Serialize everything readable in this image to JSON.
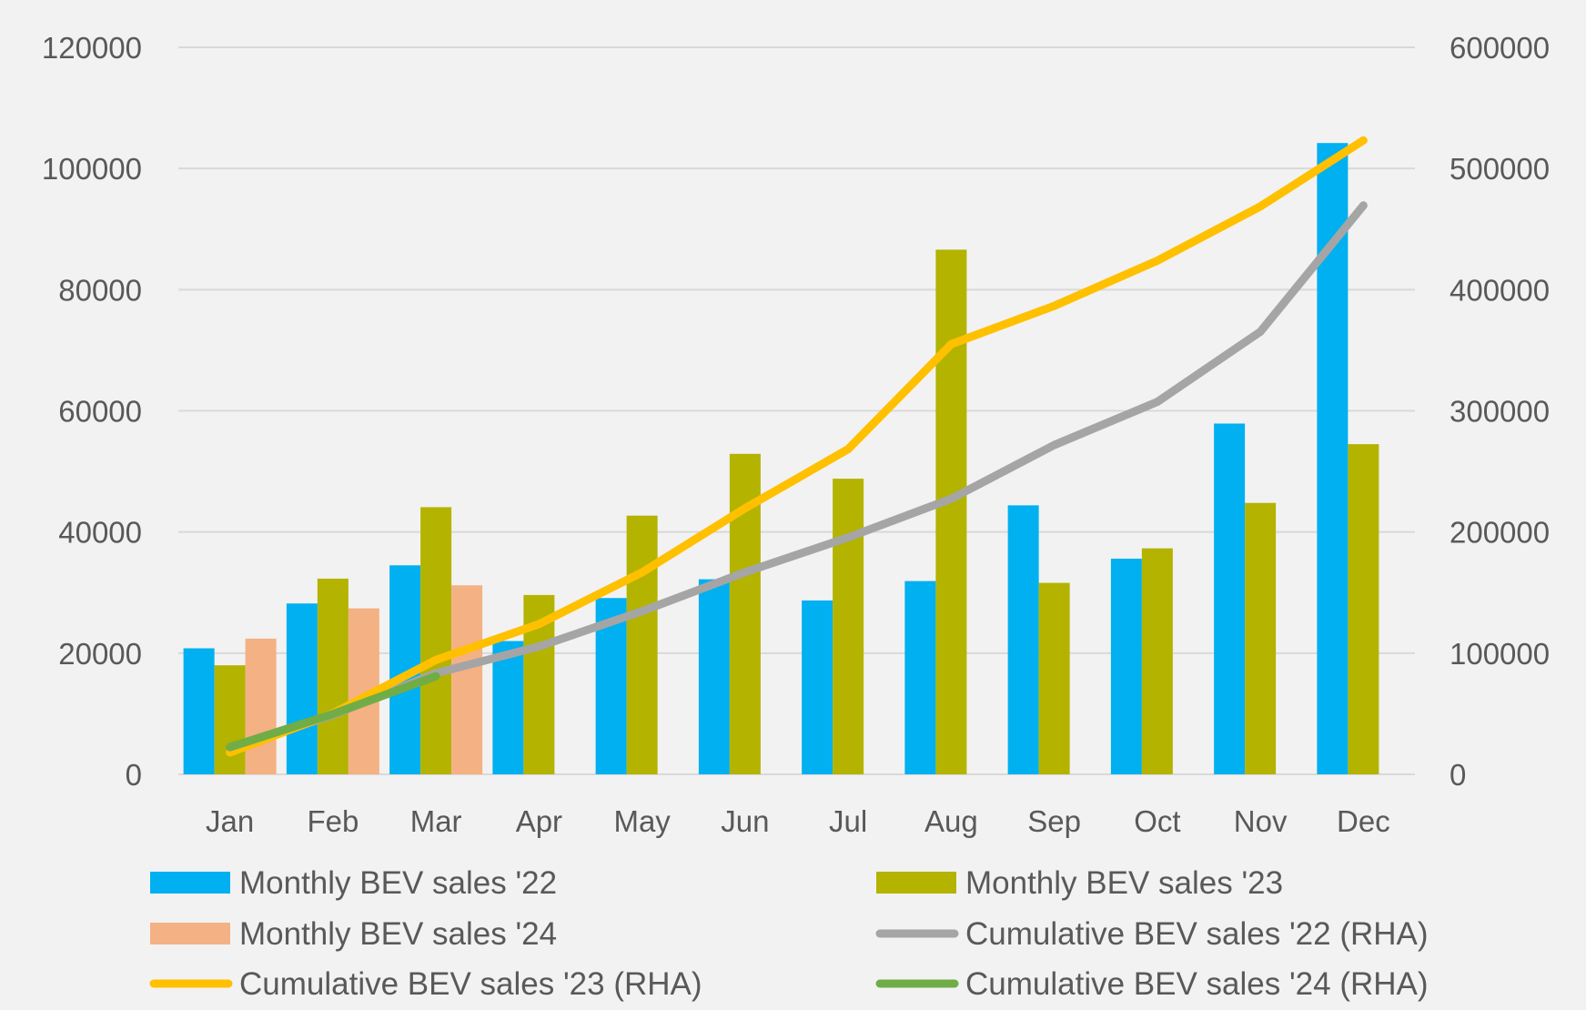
{
  "chart_data": {
    "type": "bar",
    "categories": [
      "Jan",
      "Feb",
      "Mar",
      "Apr",
      "May",
      "Jun",
      "Jul",
      "Aug",
      "Sep",
      "Oct",
      "Nov",
      "Dec"
    ],
    "y_left": {
      "ticks": [
        "0",
        "20000",
        "40000",
        "60000",
        "80000",
        "100000",
        "120000"
      ],
      "range": [
        0,
        120000
      ]
    },
    "y_right": {
      "ticks": [
        "0",
        "100000",
        "200000",
        "300000",
        "400000",
        "500000",
        "600000"
      ],
      "range": [
        0,
        600000
      ]
    },
    "grid": true,
    "legend_position": "bottom",
    "series": [
      {
        "name": "Monthly BEV sales '22",
        "kind": "bar",
        "axis": "left",
        "color": "#00b0f0",
        "values": [
          20800,
          28200,
          34500,
          22000,
          29100,
          32200,
          28700,
          31900,
          44400,
          35600,
          57900,
          104200
        ]
      },
      {
        "name": "Monthly BEV sales '23",
        "kind": "bar",
        "axis": "left",
        "color": "#b3b300",
        "values": [
          18000,
          32300,
          44100,
          29600,
          42700,
          52900,
          48800,
          86600,
          31600,
          37300,
          44800,
          54500
        ]
      },
      {
        "name": "Monthly BEV sales '24",
        "kind": "bar",
        "axis": "left",
        "color": "#f4b183",
        "values": [
          22400,
          27400,
          31200,
          null,
          null,
          null,
          null,
          null,
          null,
          null,
          null,
          null
        ]
      },
      {
        "name": "Cumulative BEV sales '22 (RHA)",
        "kind": "line",
        "axis": "right",
        "color": "#a5a5a5",
        "values": [
          20800,
          49000,
          83500,
          105500,
          134600,
          166800,
          195500,
          227400,
          271800,
          307400,
          365300,
          469500
        ]
      },
      {
        "name": "Cumulative BEV sales '23 (RHA)",
        "kind": "line",
        "axis": "right",
        "color": "#ffc000",
        "values": [
          18000,
          50300,
          94400,
          124000,
          166700,
          219600,
          268400,
          355000,
          386600,
          423900,
          468700,
          523200
        ]
      },
      {
        "name": "Cumulative BEV sales '24 (RHA)",
        "kind": "line",
        "axis": "right",
        "color": "#70ad47",
        "values": [
          22400,
          49800,
          81000,
          null,
          null,
          null,
          null,
          null,
          null,
          null,
          null,
          null
        ]
      }
    ]
  }
}
